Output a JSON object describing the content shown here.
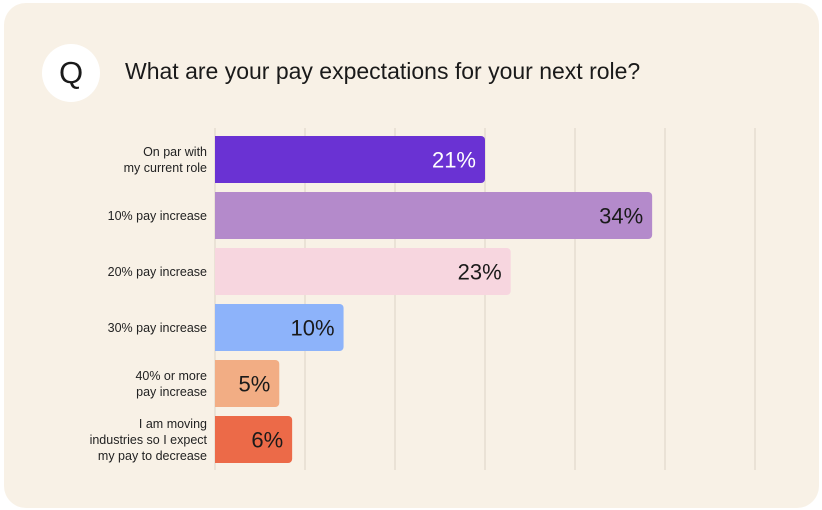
{
  "header": {
    "badge": "Q",
    "title": "What are your pay expectations for your next role?"
  },
  "chart_data": {
    "type": "bar",
    "orientation": "horizontal",
    "title": "What are your pay expectations for your next role?",
    "categories": [
      [
        "On par with",
        "my current role"
      ],
      [
        "10% pay increase"
      ],
      [
        "20% pay increase"
      ],
      [
        "30% pay increase"
      ],
      [
        "40% or more",
        "pay increase"
      ],
      [
        "I am moving",
        "industries so I expect",
        "my pay to decrease"
      ]
    ],
    "values": [
      21,
      34,
      23,
      10,
      5,
      6
    ],
    "value_labels": [
      "21%",
      "34%",
      "23%",
      "10%",
      "5%",
      "6%"
    ],
    "bar_colors": [
      "#6a32d3",
      "#b48acb",
      "#f7d6df",
      "#8db3fa",
      "#f2ad84",
      "#ec6a48"
    ],
    "label_colors": [
      "#ffffff",
      "#1a1a1a",
      "#1a1a1a",
      "#1a1a1a",
      "#1a1a1a",
      "#1a1a1a"
    ],
    "xlim": [
      0,
      42
    ],
    "grid": true,
    "xaxis_ticks_visible": false
  }
}
